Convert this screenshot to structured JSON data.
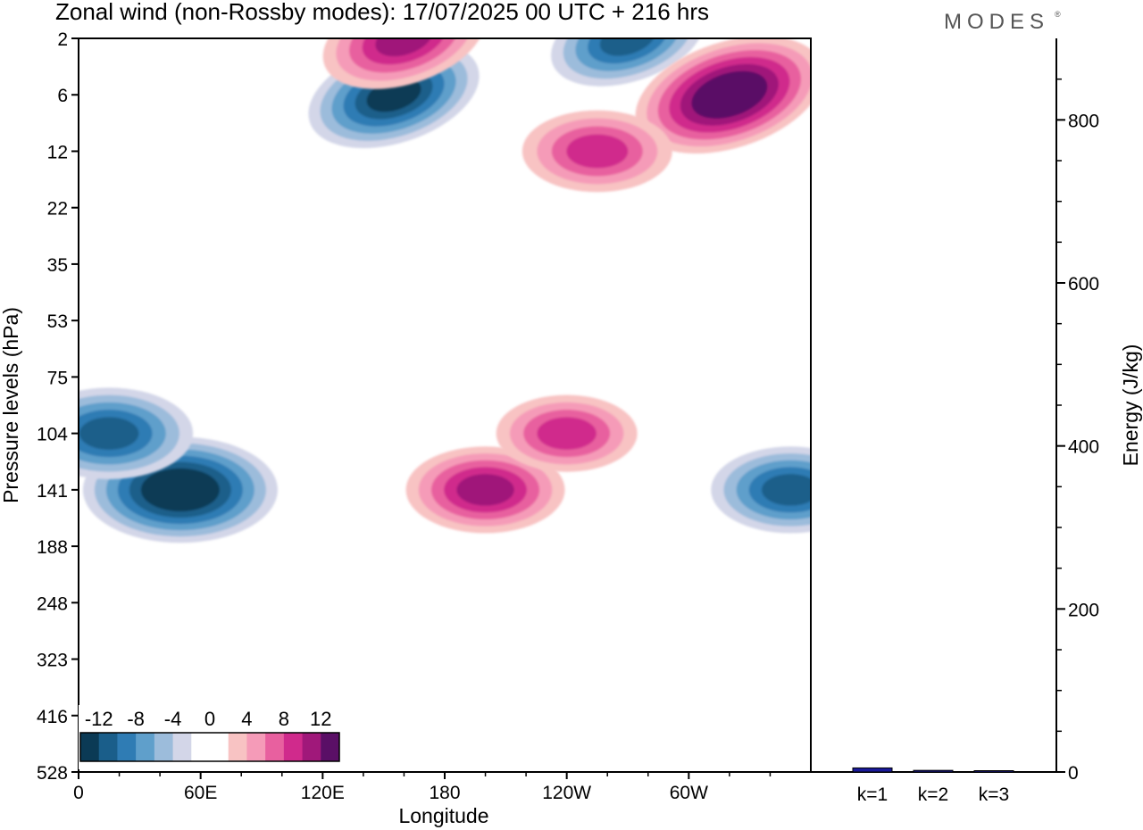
{
  "chart_data": [
    {
      "type": "heatmap",
      "title": "Zonal wind (non-Rossby modes):  17/07/2025  00 UTC  + 216 hrs",
      "xlabel": "Longitude",
      "ylabel": "Pressure levels (hPa)",
      "x_ticks": [
        "0",
        "60E",
        "120E",
        "180",
        "120W",
        "60W"
      ],
      "x_tick_positions_deg": [
        0,
        60,
        120,
        180,
        240,
        300
      ],
      "x_range_deg": [
        0,
        360
      ],
      "y_ticks": [
        "2",
        "6",
        "12",
        "22",
        "35",
        "53",
        "75",
        "104",
        "141",
        "188",
        "248",
        "323",
        "416",
        "528"
      ],
      "colorbar": {
        "tick_labels": [
          "-12",
          "-8",
          "-4",
          "0",
          "4",
          "8",
          "12"
        ],
        "levels": [
          -14,
          -12,
          -10,
          -8,
          -6,
          -4,
          -2,
          2,
          4,
          6,
          8,
          10,
          12,
          14
        ],
        "colors": [
          "#0b3a55",
          "#1a5e8a",
          "#2f7cb4",
          "#5f9fcb",
          "#9cbcdb",
          "#d3d6e8",
          "#ffffff",
          "#ffffff",
          "#f8c3c3",
          "#f59bb8",
          "#e8609f",
          "#d02a8c",
          "#a0187a",
          "#5a0f66"
        ]
      },
      "features": [
        {
          "sign": "negative",
          "lon": 50,
          "level": "141",
          "peak": -14
        },
        {
          "sign": "negative",
          "lon": 15,
          "level": "104",
          "peak": -11
        },
        {
          "sign": "negative",
          "lon": 350,
          "level": "141",
          "peak": -10
        },
        {
          "sign": "negative",
          "lon": 155,
          "level": "6",
          "peak": -12
        },
        {
          "sign": "negative",
          "lon": 270,
          "level": "2",
          "peak": -10
        },
        {
          "sign": "positive",
          "lon": 200,
          "level": "141",
          "peak": 10
        },
        {
          "sign": "positive",
          "lon": 240,
          "level": "104",
          "peak": 8
        },
        {
          "sign": "positive",
          "lon": 320,
          "level": "6",
          "peak": 14
        },
        {
          "sign": "positive",
          "lon": 255,
          "level": "12",
          "peak": 9
        },
        {
          "sign": "positive",
          "lon": 160,
          "level": "2",
          "peak": 11
        }
      ]
    },
    {
      "type": "bar",
      "ylabel": "Energy (J/kg)",
      "categories": [
        "k=1",
        "k=2",
        "k=3"
      ],
      "values": [
        5,
        2,
        1
      ],
      "ylim": [
        0,
        900
      ],
      "y_ticks": [
        "0",
        "200",
        "400",
        "600",
        "800"
      ]
    }
  ],
  "logo": "MODES",
  "logo_mark": "®"
}
